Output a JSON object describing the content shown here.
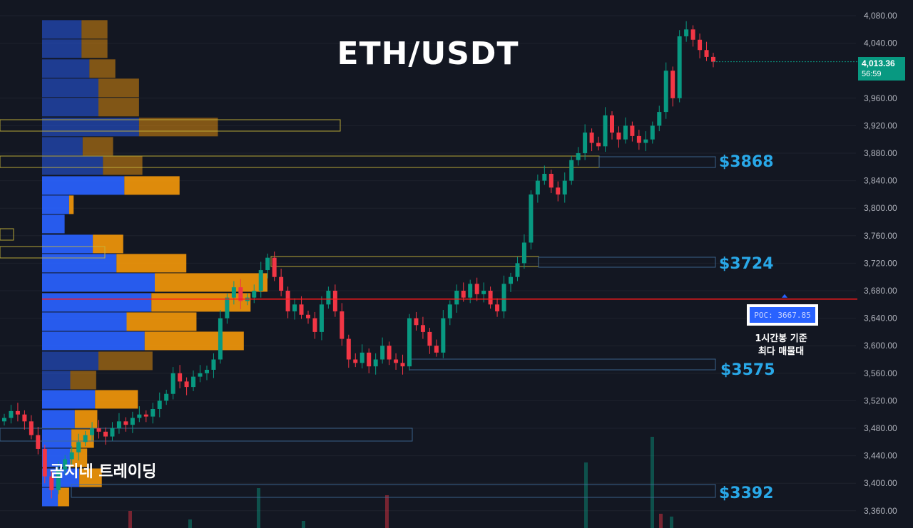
{
  "title": "ETH/USDT",
  "watermark": "곰지네 트레이딩",
  "current_price": {
    "price": "4,013.36",
    "countdown": "56:59",
    "color": "#089981"
  },
  "poc": {
    "label": "POC: 3667.85",
    "note_line1": "1시간봉 기준",
    "note_line2": "최다 매물대"
  },
  "colors": {
    "up": "#089981",
    "down": "#f23645",
    "poc_line": "#ff1a1a",
    "vp_blue": "#2962ff",
    "vp_orange": "#f0960a",
    "level_text": "#29a8e8"
  },
  "chart_data": {
    "type": "candlestick",
    "title": "ETH/USDT",
    "y_range": [
      3340,
      4100
    ],
    "y_ticks": [
      "4,080.00",
      "4,040.00",
      "3,960.00",
      "3,920.00",
      "3,880.00",
      "3,840.00",
      "3,800.00",
      "3,760.00",
      "3,720.00",
      "3,680.00",
      "3,640.00",
      "3,600.00",
      "3,560.00",
      "3,520.00",
      "3,480.00",
      "3,440.00",
      "3,400.00",
      "3,360.00"
    ],
    "y_tick_values": [
      4080,
      4040,
      3960,
      3920,
      3880,
      3840,
      3800,
      3760,
      3720,
      3680,
      3640,
      3600,
      3560,
      3520,
      3480,
      3440,
      3400,
      3360
    ],
    "grid": "horizontal",
    "levels": [
      {
        "label": "$3868",
        "value": 3868
      },
      {
        "label": "$3724",
        "value": 3724
      },
      {
        "label": "$3575",
        "value": 3575
      },
      {
        "label": "$3392",
        "value": 3392
      }
    ],
    "poc_value": 3667.85,
    "candle_closes": [
      3495,
      3505,
      3500,
      3490,
      3470,
      3450,
      3410,
      3390,
      3420,
      3435,
      3445,
      3460,
      3470,
      3480,
      3475,
      3468,
      3480,
      3490,
      3485,
      3495,
      3500,
      3497,
      3508,
      3520,
      3530,
      3560,
      3548,
      3540,
      3555,
      3560,
      3565,
      3580,
      3640,
      3670,
      3685,
      3665,
      3670,
      3680,
      3710,
      3728,
      3700,
      3680,
      3650,
      3660,
      3645,
      3640,
      3620,
      3660,
      3680,
      3650,
      3610,
      3580,
      3575,
      3590,
      3570,
      3580,
      3600,
      3580,
      3575,
      3570,
      3640,
      3630,
      3620,
      3600,
      3590,
      3640,
      3660,
      3680,
      3670,
      3690,
      3675,
      3680,
      3660,
      3650,
      3690,
      3700,
      3720,
      3750,
      3820,
      3840,
      3850,
      3830,
      3820,
      3840,
      3870,
      3880,
      3910,
      3895,
      3890,
      3935,
      3910,
      3900,
      3920,
      3905,
      3895,
      3900,
      3920,
      3940,
      4000,
      3960,
      4050,
      4060,
      4045,
      4030,
      4020,
      4013
    ],
    "volume_bars": [
      {
        "index": 58,
        "level": 0.12,
        "dir": "down"
      },
      {
        "index": 86,
        "level": 0.06,
        "dir": "up"
      },
      {
        "index": 118,
        "level": 0.28,
        "dir": "up"
      },
      {
        "index": 139,
        "level": 0.05,
        "dir": "up"
      },
      {
        "index": 178,
        "level": 0.23,
        "dir": "down"
      },
      {
        "index": 271,
        "level": 0.46,
        "dir": "up"
      },
      {
        "index": 302,
        "level": 0.64,
        "dir": "up"
      },
      {
        "index": 306,
        "level": 0.1,
        "dir": "down"
      },
      {
        "index": 311,
        "level": 0.08,
        "dir": "up"
      }
    ],
    "volume_profile": [
      {
        "price": 4060,
        "buy": 0.35,
        "sell": 0.23
      },
      {
        "price": 4032,
        "buy": 0.35,
        "sell": 0.23
      },
      {
        "price": 4003,
        "buy": 0.42,
        "sell": 0.23
      },
      {
        "price": 3975,
        "buy": 0.5,
        "sell": 0.36
      },
      {
        "price": 3947,
        "buy": 0.5,
        "sell": 0.36
      },
      {
        "price": 3918,
        "buy": 0.86,
        "sell": 0.7
      },
      {
        "price": 3890,
        "buy": 0.36,
        "sell": 0.27
      },
      {
        "price": 3862,
        "buy": 0.54,
        "sell": 0.35
      },
      {
        "price": 3833,
        "buy": 0.73,
        "sell": 0.49
      },
      {
        "price": 3805,
        "buy": 0.24,
        "sell": 0.04
      },
      {
        "price": 3777,
        "buy": 0.2,
        "sell": 0
      },
      {
        "price": 3748,
        "buy": 0.45,
        "sell": 0.27
      },
      {
        "price": 3720,
        "buy": 0.66,
        "sell": 0.62
      },
      {
        "price": 3692,
        "buy": 1.0,
        "sell": 1.0
      },
      {
        "price": 3663,
        "buy": 0.97,
        "sell": 0.88
      },
      {
        "price": 3635,
        "buy": 0.75,
        "sell": 0.62
      },
      {
        "price": 3607,
        "buy": 0.91,
        "sell": 0.88
      },
      {
        "price": 3578,
        "buy": 0.5,
        "sell": 0.48
      },
      {
        "price": 3550,
        "buy": 0.25,
        "sell": 0.23
      },
      {
        "price": 3522,
        "buy": 0.47,
        "sell": 0.38
      },
      {
        "price": 3493,
        "buy": 0.29,
        "sell": 0.2
      },
      {
        "price": 3465,
        "buy": 0.26,
        "sell": 0.2
      },
      {
        "price": 3437,
        "buy": 0.25,
        "sell": 0.15
      },
      {
        "price": 3408,
        "buy": 0.33,
        "sell": 0.2
      },
      {
        "price": 3380,
        "buy": 0.14,
        "sell": 0.1
      }
    ]
  }
}
